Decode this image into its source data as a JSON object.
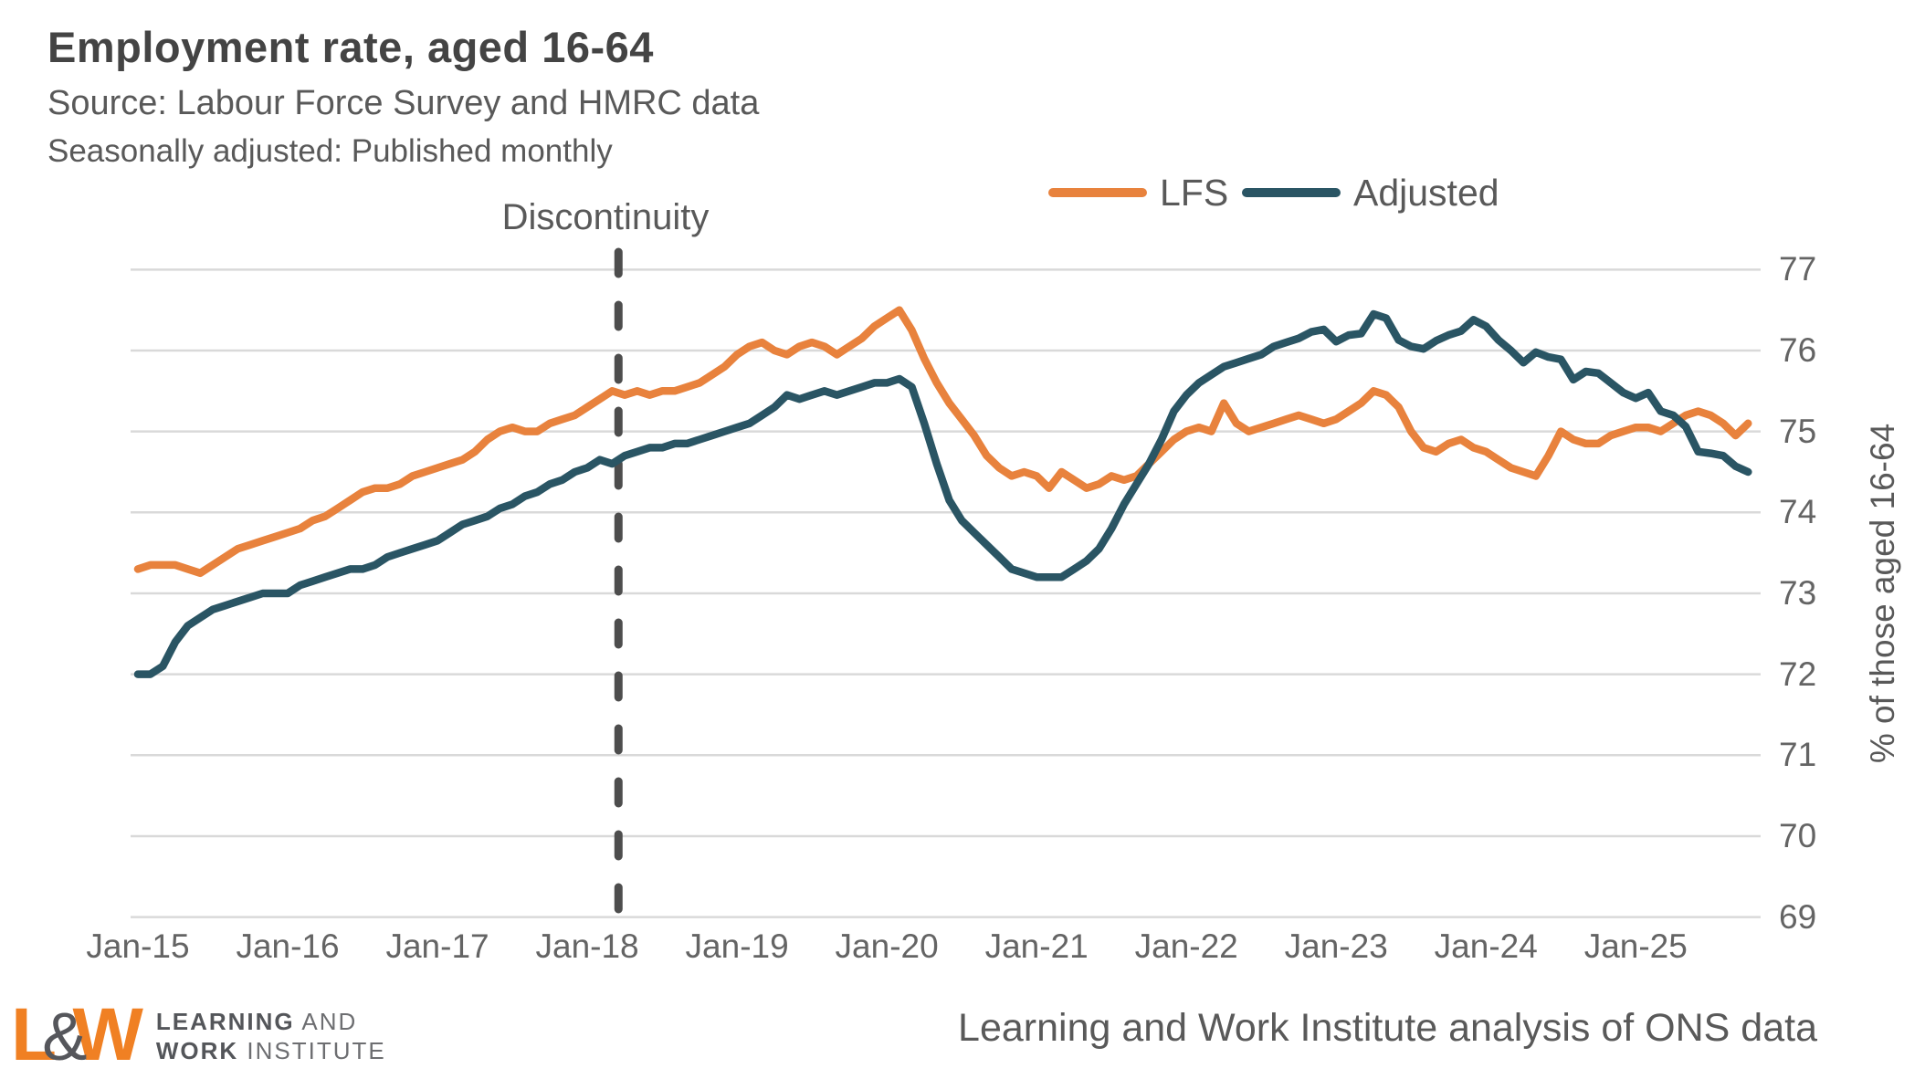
{
  "header": {
    "title": "Employment rate, aged 16-64",
    "subtitle": "Source: Labour Force Survey and HMRC data",
    "subtitle2": "Seasonally adjusted: Published monthly"
  },
  "annotation": {
    "discontinuity_label": "Discontinuity"
  },
  "legend": [
    {
      "label": "LFS",
      "color": "#E8823D"
    },
    {
      "label": "Adjusted",
      "color": "#2A5564"
    }
  ],
  "axes": {
    "y_title": "% of those aged 16-64",
    "y_ticks": [
      77,
      76,
      75,
      74,
      73,
      72,
      71,
      70,
      69
    ],
    "x_ticks": [
      "Jan-15",
      "Jan-16",
      "Jan-17",
      "Jan-18",
      "Jan-19",
      "Jan-20",
      "Jan-21",
      "Jan-22",
      "Jan-23",
      "Jan-24",
      "Jan-25"
    ]
  },
  "footer": {
    "logo_l": "L",
    "logo_amp": "&",
    "logo_w": "W",
    "logo_line1_bold": "LEARNING",
    "logo_line1_rest": " AND",
    "logo_line2_bold": "WORK",
    "logo_line2_rest": " INSTITUTE",
    "attribution": "Learning and Work Institute analysis of ONS data"
  },
  "chart_data": {
    "type": "line",
    "title": "Employment rate, aged 16-64",
    "x_start": "Jan-2015",
    "x_frequency": "monthly",
    "x_end": "Oct-2025",
    "ylabel": "% of those aged 16-64",
    "ylim": [
      69,
      77
    ],
    "grid": "horizontal",
    "legend_position": "top",
    "discontinuity_month_index": 38.5,
    "colors": {
      "grid": "#D9D9D9",
      "dashed_line": "#4D4D4D"
    },
    "series": [
      {
        "name": "LFS",
        "color": "#E8823D",
        "values": [
          73.3,
          73.35,
          73.35,
          73.35,
          73.3,
          73.25,
          73.35,
          73.45,
          73.55,
          73.6,
          73.65,
          73.7,
          73.75,
          73.8,
          73.9,
          73.95,
          74.05,
          74.15,
          74.25,
          74.3,
          74.3,
          74.35,
          74.45,
          74.5,
          74.55,
          74.6,
          74.65,
          74.75,
          74.9,
          75.0,
          75.05,
          75.0,
          75.0,
          75.1,
          75.15,
          75.2,
          75.3,
          75.4,
          75.5,
          75.45,
          75.5,
          75.45,
          75.5,
          75.5,
          75.55,
          75.6,
          75.7,
          75.8,
          75.95,
          76.05,
          76.1,
          76.0,
          75.95,
          76.05,
          76.1,
          76.05,
          75.95,
          76.05,
          76.15,
          76.3,
          76.4,
          76.5,
          76.25,
          75.9,
          75.6,
          75.35,
          75.15,
          74.95,
          74.7,
          74.55,
          74.45,
          74.5,
          74.45,
          74.3,
          74.5,
          74.4,
          74.3,
          74.35,
          74.45,
          74.4,
          74.45,
          74.6,
          74.75,
          74.9,
          75.0,
          75.05,
          75.0,
          75.35,
          75.1,
          75.0,
          75.05,
          75.1,
          75.15,
          75.2,
          75.15,
          75.1,
          75.15,
          75.25,
          75.35,
          75.5,
          75.45,
          75.3,
          75.0,
          74.8,
          74.75,
          74.85,
          74.9,
          74.8,
          74.75,
          74.65,
          74.55,
          74.5,
          74.45,
          74.7,
          75.0,
          74.9,
          74.85,
          74.85,
          74.95,
          75.0,
          75.05,
          75.05,
          75.0,
          75.1,
          75.2,
          75.25,
          75.2,
          75.1,
          74.95,
          75.1
        ]
      },
      {
        "name": "Adjusted",
        "color": "#2A5564",
        "values": [
          72.0,
          72.0,
          72.1,
          72.4,
          72.6,
          72.7,
          72.8,
          72.85,
          72.9,
          72.95,
          73.0,
          73.0,
          73.0,
          73.1,
          73.15,
          73.2,
          73.25,
          73.3,
          73.3,
          73.35,
          73.45,
          73.5,
          73.55,
          73.6,
          73.65,
          73.75,
          73.85,
          73.9,
          73.95,
          74.05,
          74.1,
          74.2,
          74.25,
          74.35,
          74.4,
          74.5,
          74.55,
          74.65,
          74.6,
          74.7,
          74.75,
          74.8,
          74.8,
          74.85,
          74.85,
          74.9,
          74.95,
          75.0,
          75.05,
          75.1,
          75.2,
          75.3,
          75.45,
          75.4,
          75.45,
          75.5,
          75.45,
          75.5,
          75.55,
          75.6,
          75.6,
          75.65,
          75.55,
          75.1,
          74.6,
          74.15,
          73.9,
          73.75,
          73.6,
          73.45,
          73.3,
          73.25,
          73.2,
          73.2,
          73.2,
          73.3,
          73.4,
          73.55,
          73.8,
          74.1,
          74.35,
          74.6,
          74.9,
          75.25,
          75.45,
          75.6,
          75.7,
          75.8,
          75.85,
          75.9,
          75.95,
          76.05,
          76.1,
          76.15,
          76.23,
          76.26,
          76.11,
          76.19,
          76.21,
          76.45,
          76.4,
          76.13,
          76.05,
          76.02,
          76.12,
          76.19,
          76.24,
          76.38,
          76.3,
          76.13,
          76.0,
          75.85,
          75.98,
          75.92,
          75.89,
          75.64,
          75.74,
          75.72,
          75.6,
          75.48,
          75.41,
          75.48,
          75.25,
          75.2,
          75.06,
          74.75,
          74.73,
          74.7,
          74.57,
          74.5
        ]
      }
    ]
  }
}
